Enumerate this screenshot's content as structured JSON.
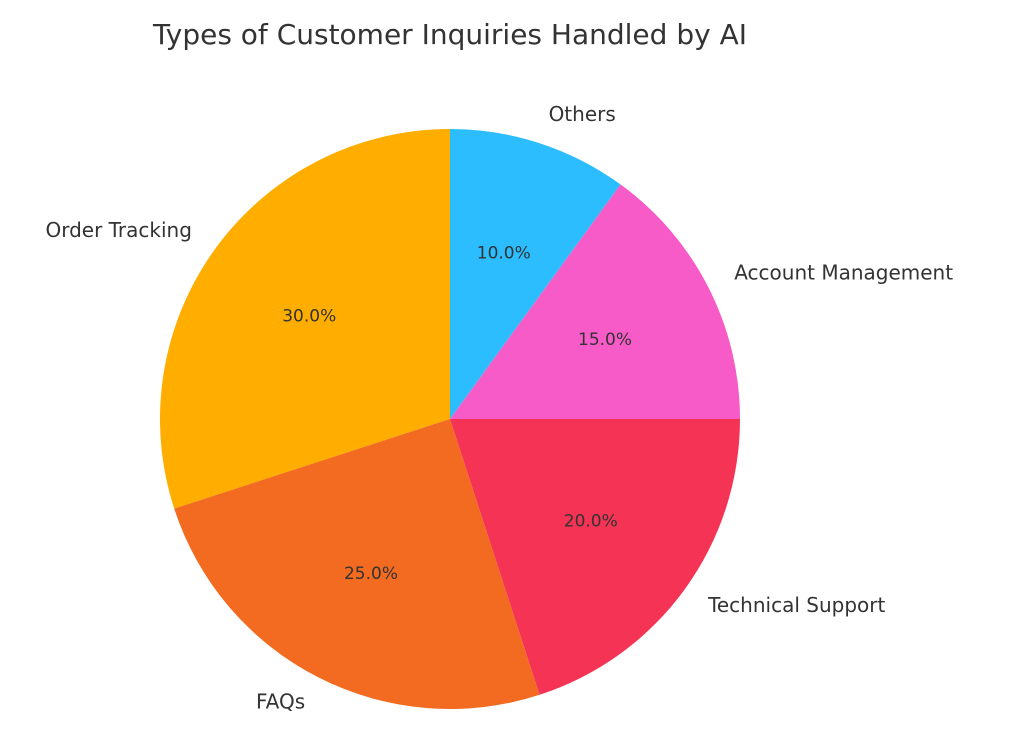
{
  "chart_data": {
    "type": "pie",
    "title": "Types of Customer Inquiries Handled by AI",
    "categories": [
      "Order Tracking",
      "FAQs",
      "Technical Support",
      "Account Management",
      "Others"
    ],
    "values": [
      30,
      25,
      20,
      15,
      10
    ],
    "value_labels": [
      "30.0%",
      "25.0%",
      "20.0%",
      "15.0%",
      "10.0%"
    ],
    "colors": [
      "#ffae00",
      "#f26b21",
      "#f53355",
      "#f75bc7",
      "#2bbdfd"
    ]
  }
}
